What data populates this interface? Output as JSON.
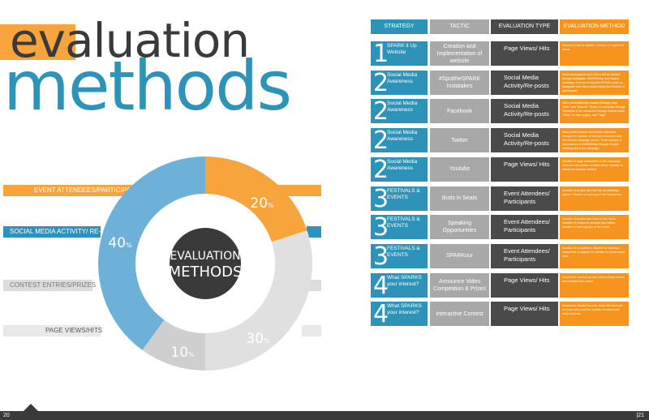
{
  "title": {
    "part1": "eval",
    "part2": "uation",
    "part3": "methods"
  },
  "legend_bands": [
    {
      "label": "EVENT ATTENDEES/PARTICIPANTS",
      "color": "#f7a43d"
    },
    {
      "label": "SOCIAL MEDIA ACTIVITY/ RE-POSTS",
      "color": "#2e93b8"
    },
    {
      "label": "CONTEST ENTRIES/PRIZES",
      "color": "#dcdcdc"
    },
    {
      "label": "PAGE VIEWS/HITS",
      "color": "#e9e9e9"
    }
  ],
  "chart_data": {
    "type": "pie",
    "center_label_line1": "EVALUATION",
    "center_label_line2": "METHODS",
    "series": [
      {
        "label_value": "20",
        "value": 20,
        "color": "#f7a43d"
      },
      {
        "label_value": "30",
        "value": 30,
        "color": "#e0e0e0"
      },
      {
        "label_value": "10",
        "value": 10,
        "color": "#cfcfcf"
      },
      {
        "label_value": "40",
        "value": 40,
        "color": "#6db1d8"
      }
    ],
    "percent_symbol": "%"
  },
  "table": {
    "headers": [
      "STRATEGY",
      "TACTIC",
      "EVALUATION TYPE",
      "EVALUATION METHOD"
    ],
    "header_colors": [
      "#2e93b8",
      "#a8a8a8",
      "#4a4a4a",
      "#f7941d"
    ],
    "rows": [
      {
        "num": "1",
        "strategy": "SPARK it Up Website",
        "tactic": "Creation and Implementation of website",
        "eval_type": "Page Views/ Hits",
        "method": "Amount of hits to website. Number of registered users."
      },
      {
        "num": "2",
        "strategy": "Social Media Awareness",
        "tactic": "#SpottheSPARK Instatakes",
        "eval_type": "Social Media Activity/Re-posts",
        "method": "Most used graphic and videos will be tracked through Instagram, #SPARKitup and related hashtags. Amount of #SpottheSPARK posts on Instagram and other social media and number of participants."
      },
      {
        "num": "2",
        "strategy": "Social Media Awareness",
        "tactic": "Facebook",
        "eval_type": "Social Media Activity/Re-posts",
        "method": "Store photo/activities tracked through page \"likes\" and \"Shares\". Reach of campaign through Facebook to be measured through shared posts, \"Likes\" to other pages, and \"Tags\"."
      },
      {
        "num": "2",
        "strategy": "Social Media Awareness",
        "tactic": "Twitter",
        "eval_type": "Social Media Activity/Re-posts",
        "method": "Most posted photos and tweets evaluated through the number of followers recorded over the months campaign period. Track number of impressions of #SPARKitup through Google trending about the campaign."
      },
      {
        "num": "2",
        "strategy": "Social Media Awareness",
        "tactic": "Youtube",
        "eval_type": "Page Views/ Hits",
        "method": "Number of page subscribers to the campaign channel and number of video views. Number of videos on channel content."
      },
      {
        "num": "3",
        "strategy": "FESTIVALS & EVENTS",
        "tactic": "Butts in Seats",
        "eval_type": "Event Attendees/ Participants",
        "method": "Number of people who use the cloudtracing system. Number of surveys of ride experience."
      },
      {
        "num": "3",
        "strategy": "FESTIVALS & EVENTS",
        "tactic": "Speaking Opportunities",
        "eval_type": "Event Attendees/ Participants",
        "method": "Number of people who come to the booth. Number of entries for surveys and raffles. Number of new signups at the booth."
      },
      {
        "num": "3",
        "strategy": "FESTIVALS & EVENTS",
        "tactic": "SPARKour",
        "eval_type": "Event Attendees/ Participants",
        "method": "Number of competitors. Number of Sparkour videos that re-appear on website or social media sites."
      },
      {
        "num": "4",
        "strategy": "What SPARKS your interest?",
        "tactic": "Announce Video Competition & Prizes",
        "eval_type": "Page Views/ Hits",
        "method": "Awareness tracked by how many contest entries are received from users."
      },
      {
        "num": "4",
        "strategy": "What SPARKS your interest?",
        "tactic": "Interactive Contest",
        "eval_type": "Page Views/ Hits",
        "method": "Awareness tracked by how many hits there are on each video and the number of votes each entry receives."
      }
    ]
  },
  "footer": {
    "left_page": "20",
    "right_page": "21"
  }
}
